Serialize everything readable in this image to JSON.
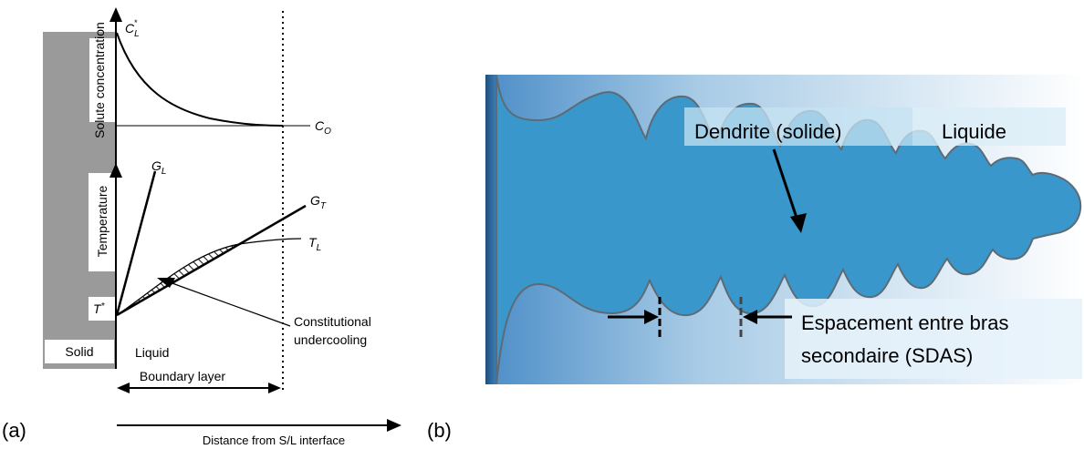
{
  "panel_a": {
    "label": "(a)",
    "solute_concentration": "Solute concentration",
    "temperature": "Temperature",
    "solid": "Solid",
    "t_star": "T*",
    "c_l_star": "C*L",
    "c_o": "CO",
    "g_l": "GL",
    "g_t": "GT",
    "t_l": "TL",
    "liquid": "Liquid",
    "constitutional_undercooling_1": "Constitutional",
    "constitutional_undercooling_2": "undercooling",
    "boundary_layer": "Boundary layer",
    "distance_axis": "Distance from S/L interface"
  },
  "panel_b": {
    "label": "(b)",
    "dendrite_label": "Dendrite (solide)",
    "liquid_label": "Liquide",
    "sdas_line1": "Espacement entre bras",
    "sdas_line2": "secondaire (SDAS)"
  },
  "colors": {
    "dendrite": "#3a97cc",
    "dendrite_edge": "#63727c",
    "wall": "#9a9a9a",
    "label_box": "#c5e3f3"
  }
}
